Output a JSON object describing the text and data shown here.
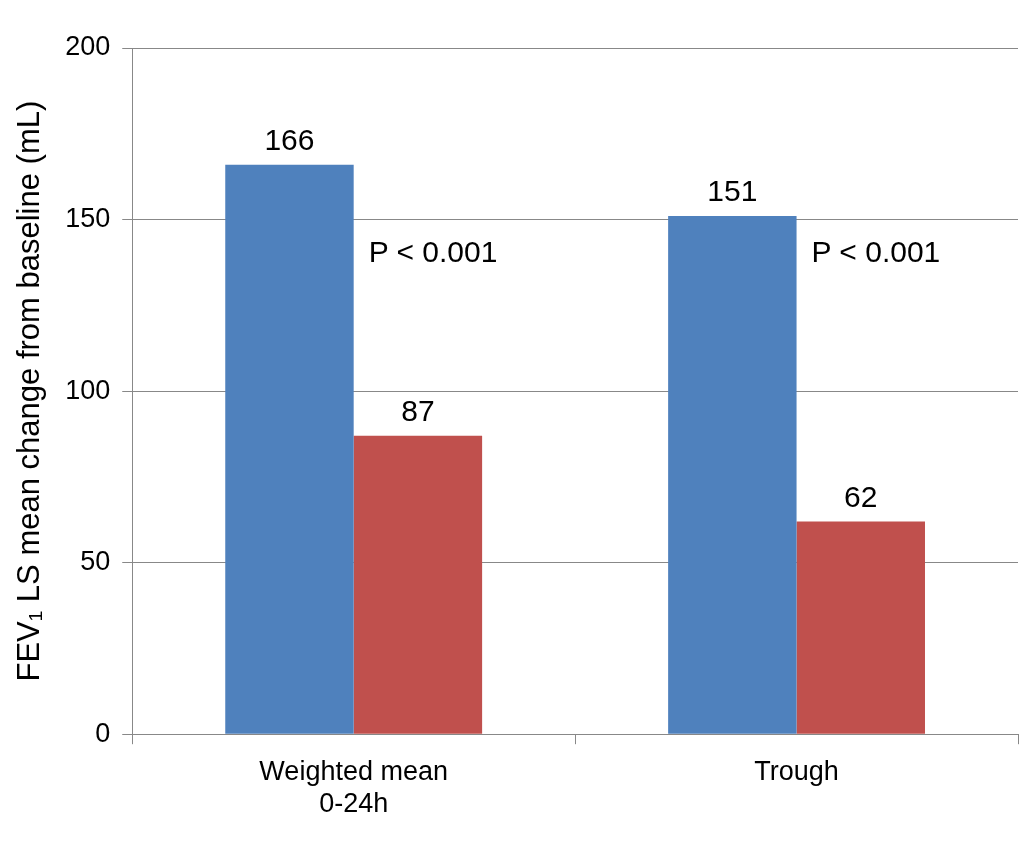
{
  "chart_data": {
    "type": "bar",
    "ylabel": "FEV₁ LS mean change from baseline (mL)",
    "categories": [
      "Weighted mean 0-24h",
      "Trough"
    ],
    "series": [
      {
        "color": "#4f81bd",
        "values": [
          166,
          151
        ]
      },
      {
        "color": "#c0504d",
        "values": [
          87,
          62
        ]
      }
    ],
    "ylim": [
      0,
      200
    ],
    "yticks": [
      0,
      50,
      100,
      150,
      200
    ],
    "grid": "y",
    "legend": false,
    "data_labels": true,
    "annotations": [
      {
        "text": "P < 0.001",
        "x": "Weighted mean 0-24h",
        "y": 140
      },
      {
        "text": "P < 0.001",
        "x": "Trough",
        "y": 140
      }
    ]
  }
}
